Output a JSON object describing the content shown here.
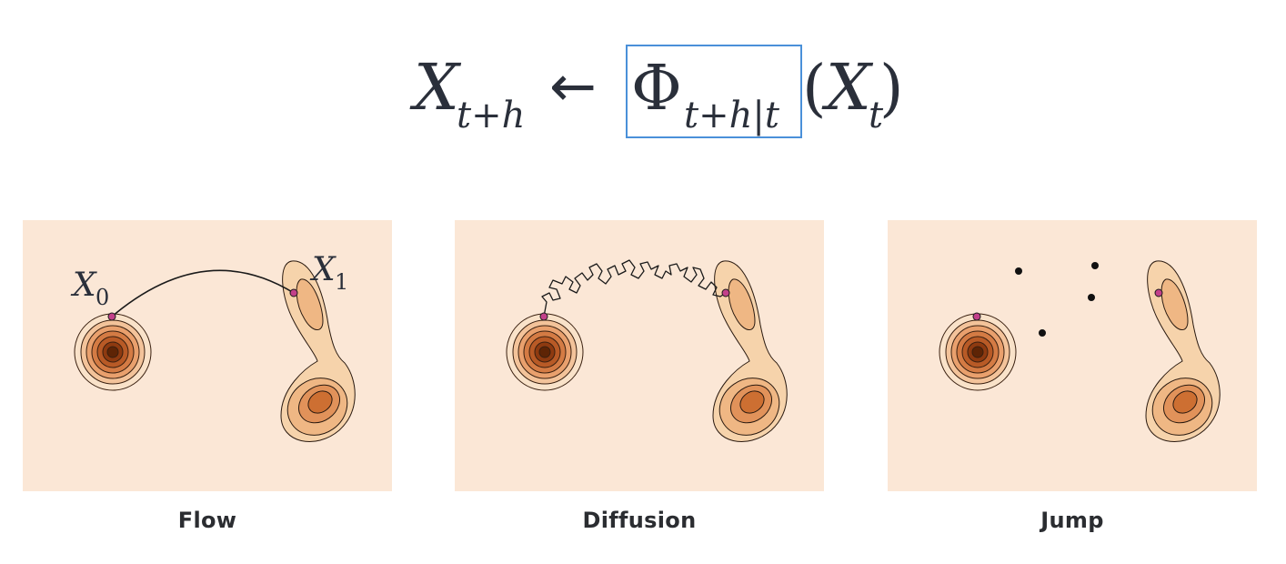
{
  "equation": {
    "lhs_var": "X",
    "lhs_sub": "t+h",
    "arrow": "←",
    "op": "Φ",
    "op_sub": "t+h|t",
    "open_paren": "(",
    "rhs_var": "X",
    "rhs_sub": "t",
    "close_paren": ")",
    "highlight_color": "#4a90d9"
  },
  "panels": [
    {
      "id": "flow",
      "caption": "Flow",
      "start_label": "X",
      "start_sub": "0",
      "end_label": "X",
      "end_sub": "1"
    },
    {
      "id": "diffusion",
      "caption": "Diffusion"
    },
    {
      "id": "jump",
      "caption": "Jump"
    }
  ],
  "colors": {
    "panel_bg": "#fbe7d6",
    "density_light": "#f6d3ab",
    "density_dark": "#5e2405",
    "point": "#c3408a"
  }
}
